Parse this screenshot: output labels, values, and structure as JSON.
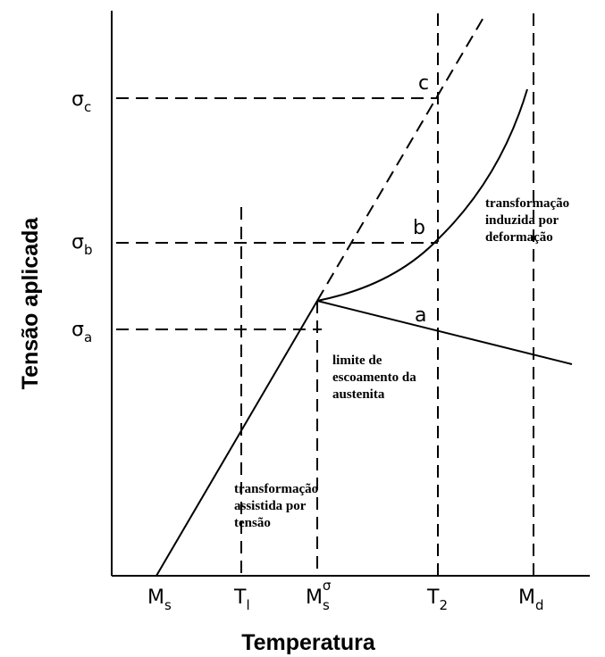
{
  "axes": {
    "y_title": "Tensão aplicada",
    "x_title": "Temperatura"
  },
  "x_labels": [
    {
      "main": "M",
      "sub": "s"
    },
    {
      "main": "T",
      "sub": "l"
    },
    {
      "main": "M",
      "sub": "s",
      "sup": "σ"
    },
    {
      "main": "T",
      "sub": "2"
    },
    {
      "main": "M",
      "sub": "d"
    }
  ],
  "y_labels": [
    {
      "main": "σ",
      "sub": "c"
    },
    {
      "main": "σ",
      "sub": "b"
    },
    {
      "main": "σ",
      "sub": "a"
    }
  ],
  "points": [
    "c",
    "b",
    "a"
  ],
  "annotations": [
    {
      "lines": [
        "transformação",
        "induzida por",
        "deformação"
      ]
    },
    {
      "lines": [
        "limite de",
        "escoamento da",
        "austenita"
      ]
    },
    {
      "lines": [
        "transformação",
        "assistida por",
        "tensão"
      ]
    }
  ]
}
